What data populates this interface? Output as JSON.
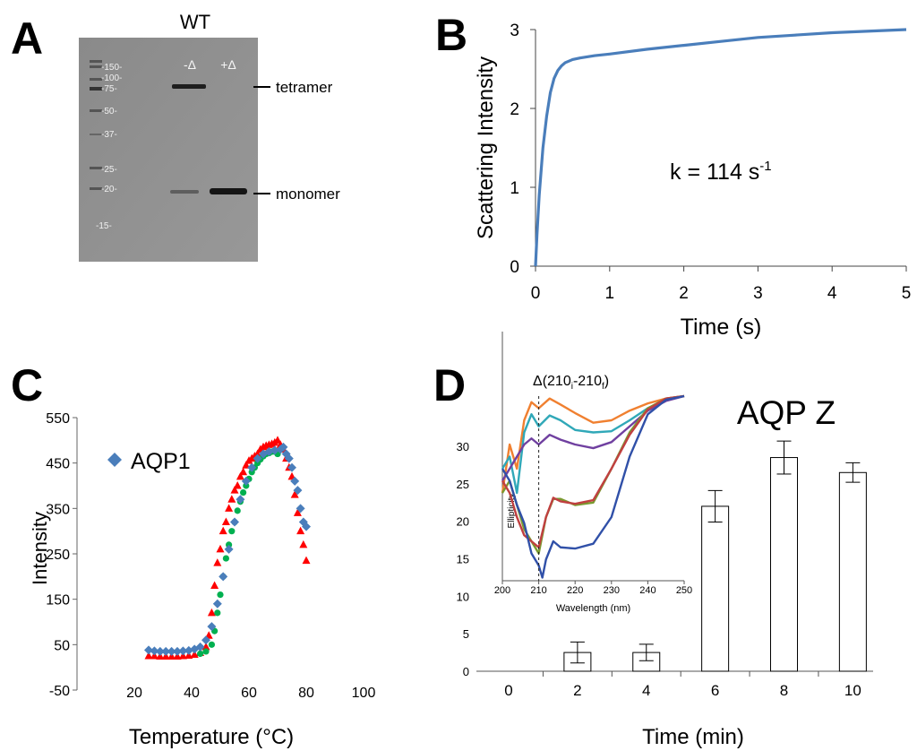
{
  "panels": {
    "A": "A",
    "B": "B",
    "C": "C",
    "D": "D"
  },
  "gel": {
    "title": "WT",
    "lane_labels": [
      "-Δ",
      "+Δ"
    ],
    "ladder": [
      "-150-",
      "-100-",
      "-75-",
      "-50-",
      "-37-",
      "-25-",
      "-20-",
      "-15-"
    ],
    "band_labels": {
      "tetramer": "tetramer",
      "monomer": "monomer"
    }
  },
  "chart_data": [
    {
      "id": "B",
      "type": "line",
      "title": "",
      "xlabel": "Time (s)",
      "ylabel": "Scattering Intensity",
      "xlim": [
        0,
        5
      ],
      "ylim": [
        0,
        3
      ],
      "xticks": [
        "0",
        "1",
        "2",
        "3",
        "4",
        "5"
      ],
      "yticks": [
        "0",
        "1",
        "2",
        "3"
      ],
      "annotation": {
        "text": "k = 114 s",
        "sup": "-1"
      },
      "series": [
        {
          "name": "scattering",
          "color": "#4a7ebb",
          "x": [
            0,
            0.02,
            0.05,
            0.1,
            0.15,
            0.2,
            0.25,
            0.3,
            0.35,
            0.4,
            0.45,
            0.5,
            0.6,
            0.8,
            1.0,
            1.5,
            2.0,
            2.5,
            3.0,
            3.5,
            4.0,
            4.5,
            5.0
          ],
          "y": [
            0,
            0.4,
            0.9,
            1.5,
            1.9,
            2.2,
            2.38,
            2.48,
            2.54,
            2.58,
            2.6,
            2.62,
            2.64,
            2.67,
            2.69,
            2.75,
            2.8,
            2.85,
            2.9,
            2.93,
            2.96,
            2.98,
            3.0
          ]
        }
      ]
    },
    {
      "id": "C",
      "type": "scatter",
      "title": "",
      "xlabel": "Temperature (°C)",
      "ylabel": "Intensity",
      "xlim": [
        0,
        100
      ],
      "ylim": [
        -50,
        550
      ],
      "xticks": [
        "20",
        "40",
        "60",
        "80",
        "100"
      ],
      "yticks": [
        "-50",
        "50",
        "150",
        "250",
        "350",
        "450",
        "550"
      ],
      "legend": {
        "label": "AQP1",
        "placement": "top-left"
      },
      "series": [
        {
          "name": "AQP1",
          "color": "#4a7ebb",
          "marker": "diamond",
          "x": [
            25,
            27,
            29,
            31,
            33,
            35,
            37,
            39,
            41,
            43,
            45,
            47,
            49,
            51,
            53,
            55,
            57,
            59,
            61,
            63,
            65,
            67,
            69,
            71,
            72,
            73,
            74,
            75,
            76,
            77,
            78,
            79,
            80
          ],
          "y": [
            38,
            36,
            35,
            35,
            35,
            35,
            36,
            37,
            40,
            45,
            60,
            90,
            140,
            200,
            260,
            320,
            370,
            410,
            440,
            460,
            470,
            475,
            478,
            480,
            485,
            470,
            460,
            440,
            410,
            390,
            350,
            320,
            310
          ]
        },
        {
          "name": "red",
          "color": "#ff0000",
          "marker": "triangle",
          "x": [
            25,
            27,
            29,
            31,
            33,
            35,
            37,
            39,
            41,
            43,
            45,
            46,
            47,
            48,
            49,
            50,
            51,
            52,
            53,
            54,
            55,
            56,
            57,
            58,
            59,
            60,
            61,
            62,
            63,
            64,
            65,
            66,
            67,
            68,
            69,
            70,
            71,
            72,
            73,
            74,
            75,
            76,
            77,
            78,
            79,
            80
          ],
          "y": [
            25,
            25,
            24,
            24,
            24,
            24,
            25,
            26,
            28,
            32,
            45,
            70,
            120,
            180,
            230,
            260,
            300,
            320,
            350,
            370,
            390,
            400,
            420,
            430,
            445,
            455,
            460,
            465,
            470,
            480,
            485,
            488,
            490,
            492,
            495,
            500,
            490,
            480,
            460,
            440,
            420,
            380,
            340,
            300,
            270,
            235
          ]
        },
        {
          "name": "green",
          "color": "#00b050",
          "marker": "circle",
          "x": [
            43,
            45,
            47,
            48,
            49,
            50,
            51,
            52,
            53,
            54,
            55,
            56,
            57,
            58,
            59,
            60,
            61,
            62,
            63,
            64,
            65,
            66,
            67,
            68,
            69,
            70
          ],
          "y": [
            30,
            35,
            50,
            80,
            120,
            160,
            200,
            240,
            270,
            300,
            320,
            345,
            365,
            385,
            400,
            415,
            430,
            440,
            450,
            458,
            465,
            470,
            472,
            475,
            475,
            470
          ]
        }
      ]
    },
    {
      "id": "D",
      "type": "bar",
      "title": "AQP Z",
      "xlabel": "Time (min)",
      "ylabel": "",
      "ylim": [
        0,
        30
      ],
      "categories": [
        "0",
        "2",
        "4",
        "6",
        "8",
        "10"
      ],
      "values": [
        0,
        2.5,
        2.5,
        22,
        28.5,
        26.5
      ],
      "errors": [
        0,
        1.4,
        1.1,
        2.1,
        2.2,
        1.3
      ],
      "yticks": [
        "0",
        "5",
        "10",
        "15",
        "20",
        "25",
        "30"
      ]
    },
    {
      "id": "D-inset",
      "type": "line",
      "title": "",
      "xlabel": "Wavelength (nm)",
      "ylabel": "Ellipticity",
      "xlim": [
        200,
        250
      ],
      "xticks": [
        "200",
        "210",
        "220",
        "230",
        "240",
        "250"
      ],
      "annotation": {
        "text": "Δ(210",
        "sub1": "i",
        "mid": "-210",
        "sub2": "f",
        "end": ")"
      },
      "series": [
        {
          "name": "orange",
          "color": "#f08030",
          "x": [
            200,
            202,
            204,
            206,
            208,
            210,
            213,
            216,
            220,
            225,
            230,
            235,
            240,
            245,
            250
          ],
          "y": [
            10,
            6,
            8,
            4,
            2.5,
            3.0,
            2.2,
            2.7,
            3.4,
            4.2,
            4.0,
            3.2,
            2.6,
            2.2,
            2.0
          ]
        },
        {
          "name": "teal",
          "color": "#30a8b8",
          "x": [
            200,
            202,
            204,
            206,
            208,
            210,
            213,
            216,
            220,
            225,
            230,
            235,
            240,
            245,
            250
          ],
          "y": [
            8,
            7,
            10,
            5,
            3.5,
            4.5,
            3.6,
            4.0,
            4.8,
            5.0,
            4.9,
            4.0,
            3.0,
            2.3,
            2.0
          ]
        },
        {
          "name": "purple",
          "color": "#7040a0",
          "x": [
            200,
            202,
            204,
            206,
            208,
            210,
            213,
            216,
            220,
            225,
            230,
            235,
            240,
            245,
            250
          ],
          "y": [
            9,
            8,
            7,
            6,
            5.5,
            6.0,
            5.2,
            5.6,
            6.0,
            6.3,
            5.8,
            4.5,
            3.2,
            2.4,
            2.0
          ]
        },
        {
          "name": "green",
          "color": "#7a9a30",
          "x": [
            200,
            202,
            204,
            206,
            208,
            210,
            212,
            214,
            216,
            220,
            225,
            230,
            235,
            240,
            245,
            250
          ],
          "y": [
            10,
            9,
            11,
            13,
            14,
            15,
            12,
            10.5,
            10.5,
            11.0,
            10.8,
            8.0,
            5.0,
            3.0,
            2.2,
            2.0
          ]
        },
        {
          "name": "red",
          "color": "#c04040",
          "x": [
            200,
            202,
            204,
            206,
            208,
            210,
            212,
            214,
            216,
            220,
            225,
            230,
            235,
            240,
            245,
            250
          ],
          "y": [
            9,
            10,
            12,
            13.5,
            14,
            14.5,
            12,
            10.4,
            10.7,
            10.9,
            10.6,
            8.0,
            5.2,
            3.1,
            2.2,
            2.0
          ]
        },
        {
          "name": "blue",
          "color": "#3050a8",
          "x": [
            200,
            202,
            204,
            206,
            208,
            210,
            211,
            212,
            214,
            216,
            220,
            225,
            230,
            235,
            240,
            245,
            250
          ],
          "y": [
            8,
            9,
            11,
            12.5,
            15,
            16,
            17,
            15.5,
            14,
            14.5,
            14.6,
            14.2,
            12.0,
            7.0,
            3.5,
            2.3,
            2.0
          ]
        }
      ]
    }
  ]
}
